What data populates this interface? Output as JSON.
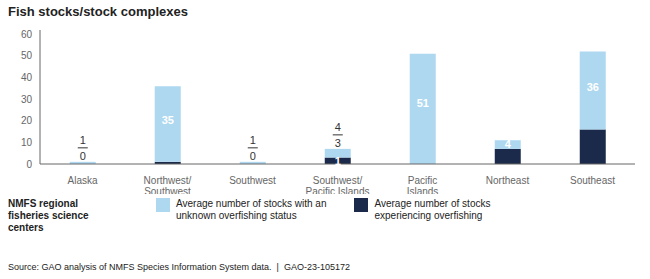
{
  "chart_data": {
    "type": "bar",
    "title": "Fish stocks/stock complexes",
    "categories": [
      "Alaska",
      "Northwest/\nSouthwest",
      "Southwest",
      "Southwest/\nPacific Islands",
      "Pacific\nIslands",
      "Northeast",
      "Southeast"
    ],
    "series": [
      {
        "name": "Average number of stocks\nexperiencing overfishing",
        "color": "#1b2a4a",
        "values": [
          0,
          1,
          0,
          3,
          0,
          7,
          16
        ]
      },
      {
        "name": "Average number of stocks with an\nunknown overfishing status",
        "color": "#add8f0",
        "values": [
          1,
          35,
          1,
          4,
          51,
          4,
          36
        ]
      }
    ],
    "ylim": [
      0,
      62
    ],
    "yticks": [
      0,
      10,
      20,
      30,
      40,
      50,
      60
    ],
    "stacked": true,
    "data_labels": true,
    "grid": false,
    "annotations": [
      "NMFS regional\nfisheries science\ncenters",
      "Source: GAO analysis of NMFS Species Information System data.  |  GAO-23-105172"
    ]
  }
}
